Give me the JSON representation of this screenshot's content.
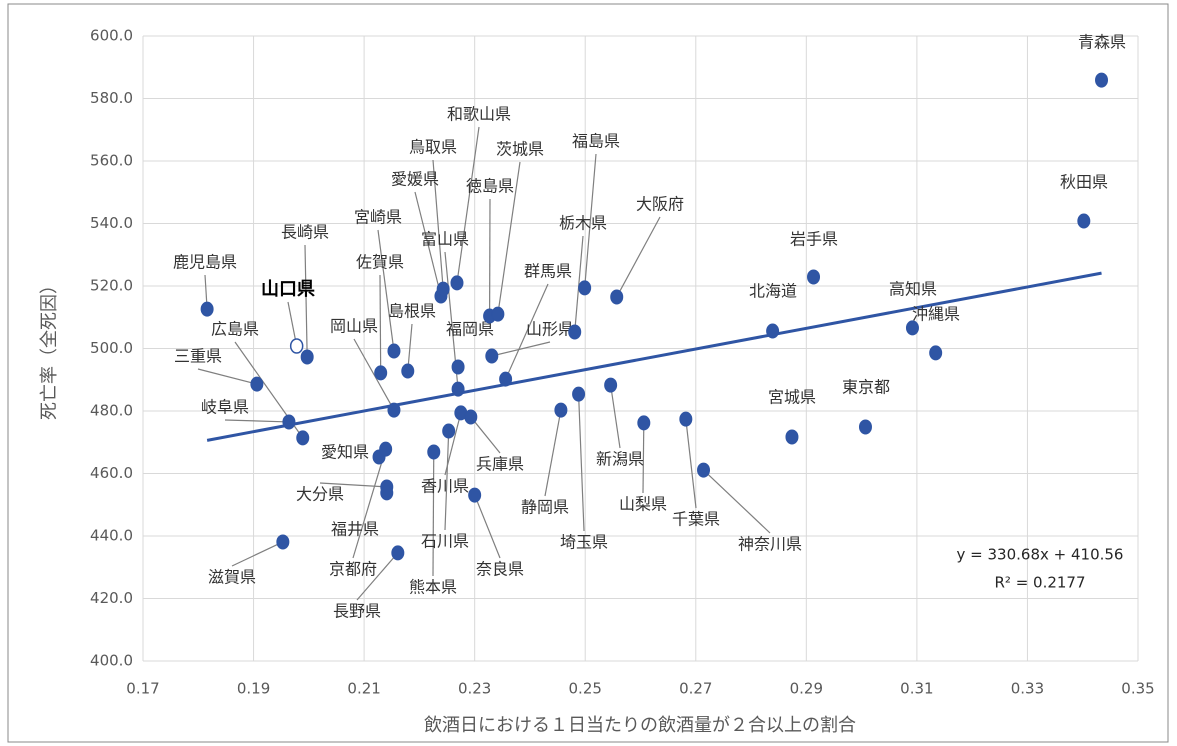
{
  "chart_data": {
    "type": "scatter",
    "xlabel": "飲酒日における１日当たりの飲酒量が２合以上の割合",
    "ylabel": "死亡率（全死因）",
    "xlim": [
      0.17,
      0.35
    ],
    "xticks": [
      0.17,
      0.19,
      0.21,
      0.23,
      0.25,
      0.27,
      0.29,
      0.31,
      0.33,
      0.35
    ],
    "ylim": [
      400,
      600
    ],
    "yticks": [
      {
        "value": 400,
        "label": "400.0"
      },
      {
        "value": 420,
        "label": "420.0"
      },
      {
        "value": 440,
        "label": "440.0"
      },
      {
        "value": 460,
        "label": "460.0"
      },
      {
        "value": 480,
        "label": "480.0"
      },
      {
        "value": 500,
        "label": "500.0"
      },
      {
        "value": 520,
        "label": "520.0"
      },
      {
        "value": 540,
        "label": "540.0"
      },
      {
        "value": 560,
        "label": "560.0"
      },
      {
        "value": 580,
        "label": "580.0"
      },
      {
        "value": 600,
        "label": "600.0"
      }
    ],
    "grid": true,
    "color": "#2f55a4",
    "highlight": "山口県",
    "labels": [
      "鹿児島県",
      "山口県",
      "長崎県",
      "三重県",
      "岐阜県",
      "広島県",
      "滋賀県",
      "愛知県",
      "京都府",
      "大分県",
      "福井県",
      "長野県",
      "岡山県",
      "佐賀県",
      "宮崎県",
      "島根県",
      "熊本県",
      "石川県",
      "香川県",
      "兵庫県",
      "奈良県",
      "福岡県",
      "富山県",
      "愛媛県",
      "鳥取県",
      "和歌山県",
      "徳島県",
      "茨城県",
      "山形県",
      "群馬県",
      "静岡県",
      "埼玉県",
      "栃木県",
      "福島県",
      "大阪府",
      "新潟県",
      "山梨県",
      "千葉県",
      "神奈川県",
      "北海道",
      "岩手県",
      "宮城県",
      "東京都",
      "高知県",
      "沖縄県",
      "秋田県",
      "青森県"
    ],
    "x": [
      0.1816,
      0.1978,
      0.1997,
      0.1906,
      0.1964,
      0.1989,
      0.1953,
      0.2127,
      0.2139,
      0.2141,
      0.2141,
      0.2161,
      0.2154,
      0.213,
      0.2154,
      0.2179,
      0.2226,
      0.2253,
      0.2275,
      0.2293,
      0.23,
      0.227,
      0.227,
      0.2239,
      0.2243,
      0.2268,
      0.2327,
      0.2342,
      0.2331,
      0.2356,
      0.2456,
      0.2488,
      0.2481,
      0.2499,
      0.2557,
      0.2546,
      0.2606,
      0.2682,
      0.2714,
      0.2839,
      0.2913,
      0.2874,
      0.3007,
      0.3092,
      0.3134,
      0.3402,
      0.3434
    ],
    "y": [
      512.6,
      500.8,
      497.3,
      488.6,
      476.5,
      471.4,
      438.1,
      465.3,
      467.8,
      455.7,
      453.8,
      434.6,
      480.3,
      492.2,
      499.2,
      492.8,
      466.9,
      473.6,
      479.4,
      478.1,
      453.1,
      494.1,
      487.0,
      516.8,
      519.0,
      521.0,
      510.4,
      511.0,
      497.6,
      490.2,
      480.3,
      485.4,
      505.3,
      519.4,
      516.5,
      488.3,
      476.2,
      477.4,
      461.1,
      505.6,
      522.9,
      471.7,
      474.9,
      506.6,
      498.6,
      540.8,
      585.9
    ],
    "trendline": {
      "slope": 330.68,
      "intercept": 410.56,
      "equation": "y = 330.68x + 410.56",
      "r2": "R² = 0.2177",
      "color": "#2f55a4"
    }
  }
}
